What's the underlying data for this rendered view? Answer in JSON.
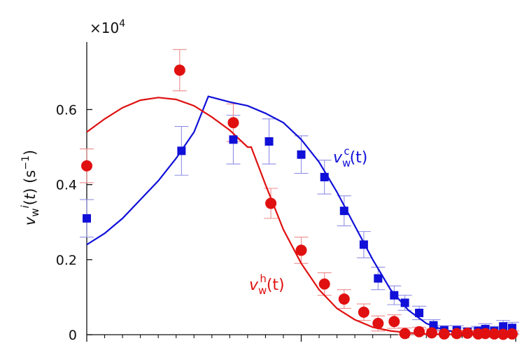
{
  "chart_data": {
    "type": "scatter",
    "title": "",
    "xlabel": "",
    "ylabel": "v_w^i(t) (s^-1)",
    "scale_factor_label": "×10",
    "scale_factor_exponent": "4",
    "xlim": [
      0,
      24
    ],
    "ylim": [
      0,
      0.78
    ],
    "y_ticks": [
      0,
      0.2,
      0.4,
      0.6
    ],
    "y_tick_labels": [
      "0",
      "0.2",
      "0.4",
      "0.6"
    ],
    "x_major_ticks": [
      0,
      12,
      24
    ],
    "x_minor_ticks": [
      1,
      2,
      3,
      4,
      5,
      6,
      7,
      8,
      9,
      10,
      11,
      13,
      14,
      15,
      16,
      17,
      18,
      19,
      20,
      21,
      22,
      23
    ],
    "grid": false,
    "series": [
      {
        "name": "v_w^c(t)",
        "label_base": "v",
        "label_sub": "w",
        "label_sup": "c",
        "label_arg": "(t)",
        "color": "#1010d8",
        "marker": "square",
        "x": [
          0,
          5.3,
          8.2,
          10.2,
          12.0,
          13.3,
          14.4,
          15.5,
          16.3,
          17.2,
          17.8,
          18.6,
          19.4,
          20.0,
          20.7,
          21.3,
          21.9,
          22.3,
          22.8,
          23.3,
          23.8
        ],
        "y": [
          0.31,
          0.49,
          0.52,
          0.515,
          0.48,
          0.42,
          0.33,
          0.24,
          0.15,
          0.105,
          0.085,
          0.058,
          0.025,
          0.012,
          0.012,
          0.008,
          0.01,
          0.015,
          0.01,
          0.022,
          0.018
        ],
        "err": [
          0.05,
          0.065,
          0.065,
          0.06,
          0.05,
          0.045,
          0.04,
          0.035,
          0.03,
          0.025,
          0.02,
          0.018,
          0.015,
          0.012,
          0.012,
          0.01,
          0.012,
          0.014,
          0.012,
          0.016,
          0.015
        ],
        "fit_x": [
          0,
          1,
          2,
          3,
          4,
          5,
          6,
          6.8,
          8,
          9,
          10,
          11,
          12,
          13,
          14,
          15,
          16,
          17,
          18,
          19,
          20,
          21,
          22,
          23,
          24
        ],
        "fit_y": [
          0.24,
          0.27,
          0.31,
          0.36,
          0.41,
          0.47,
          0.54,
          0.635,
          0.62,
          0.61,
          0.59,
          0.565,
          0.52,
          0.46,
          0.38,
          0.29,
          0.2,
          0.12,
          0.065,
          0.03,
          0.012,
          0.005,
          0.002,
          0.001,
          0.001
        ]
      },
      {
        "name": "v_w^h(t)",
        "label_base": "v",
        "label_sub": "w",
        "label_sup": "h",
        "label_arg": "(t)",
        "color": "#e01010",
        "marker": "circle",
        "x": [
          0,
          5.2,
          8.2,
          10.3,
          12.0,
          13.3,
          14.4,
          15.5,
          16.3,
          17.2,
          17.8,
          18.6,
          19.3,
          20.0,
          20.7,
          21.3,
          21.9,
          22.3,
          22.8,
          23.3,
          23.8
        ],
        "y": [
          0.45,
          0.705,
          0.565,
          0.35,
          0.225,
          0.135,
          0.095,
          0.06,
          0.03,
          0.035,
          0.003,
          0.008,
          0.005,
          0.002,
          0.003,
          0.004,
          0.002,
          0.003,
          0.002,
          0.001,
          0.002
        ],
        "err": [
          0.045,
          0.055,
          0.05,
          0.04,
          0.035,
          0.03,
          0.025,
          0.022,
          0.02,
          0.018,
          0.015,
          0.012,
          0.01,
          0.01,
          0.008,
          0.008,
          0.008,
          0.008,
          0.008,
          0.008,
          0.008
        ],
        "fit_x": [
          0,
          1,
          2,
          3,
          4,
          5,
          6,
          7,
          8,
          9,
          9.2,
          10,
          11,
          12,
          13,
          14,
          15,
          16,
          17,
          18,
          19,
          20,
          21,
          22,
          23,
          24
        ],
        "fit_y": [
          0.54,
          0.575,
          0.605,
          0.625,
          0.632,
          0.627,
          0.61,
          0.58,
          0.545,
          0.5,
          0.5,
          0.4,
          0.28,
          0.19,
          0.12,
          0.07,
          0.04,
          0.02,
          0.01,
          0.005,
          0.002,
          0.001,
          0.001,
          0.001,
          0.001,
          0.001
        ]
      }
    ]
  }
}
